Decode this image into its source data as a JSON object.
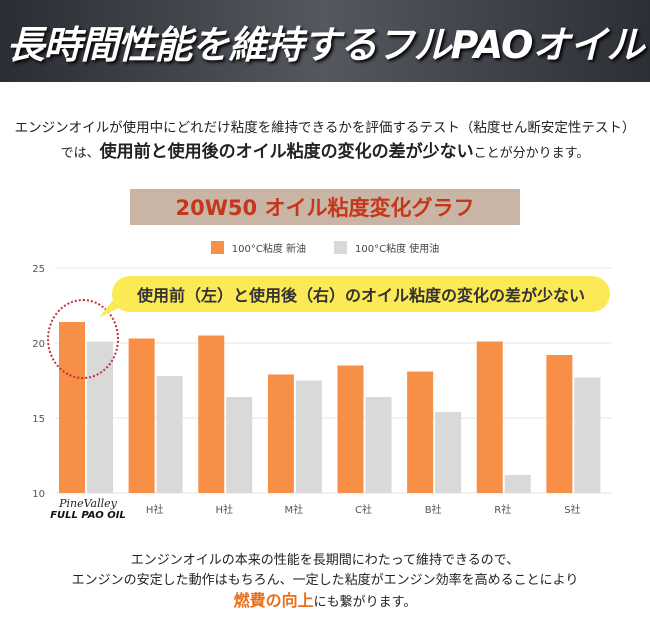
{
  "banner": {
    "title": "長時間性能を維持するフルPAOオイル"
  },
  "intro": {
    "line1": "エンジンオイルが使用中にどれだけ粘度を維持できるかを評価するテスト（粘度せん断安定性テスト）",
    "line2_pre": "では、",
    "line2_bold": "使用前と使用後のオイル粘度の変化の差が少ない",
    "line2_post": "ことが分かります。"
  },
  "callout": "使用前（左）と使用後（右）のオイル粘度の変化の差が少ない",
  "logo": {
    "brand": "PineValley",
    "product": "FULL PAO OIL"
  },
  "colors": {
    "new": "#f88f46",
    "used": "#d9d9d9"
  },
  "chart_data": {
    "type": "bar",
    "title": "20W50 オイル粘度変化グラフ",
    "categories": [
      "PineValley FULL PAO OIL",
      "H社",
      "H社",
      "M社",
      "C社",
      "B社",
      "R社",
      "S社"
    ],
    "series": [
      {
        "name": "100°C粘度 新油",
        "values": [
          21.4,
          20.3,
          20.5,
          17.9,
          18.5,
          18.1,
          20.1,
          19.2
        ]
      },
      {
        "name": "100°C粘度 使用油",
        "values": [
          20.1,
          17.8,
          16.4,
          17.5,
          16.4,
          15.4,
          11.2,
          17.7
        ]
      }
    ],
    "yticks": [
      10,
      15,
      20,
      25
    ],
    "ylim": [
      10,
      25
    ],
    "grid": true,
    "legend": "top"
  },
  "outro": {
    "line1": "エンジンオイルの本来の性能を長期間にわたって維持できるので、",
    "line2": "エンジンの安定した動作はもちろん、一定した粘度がエンジン効率を高めることにより",
    "line3_hl": "燃費の向上",
    "line3_post": "にも繋がります。"
  }
}
